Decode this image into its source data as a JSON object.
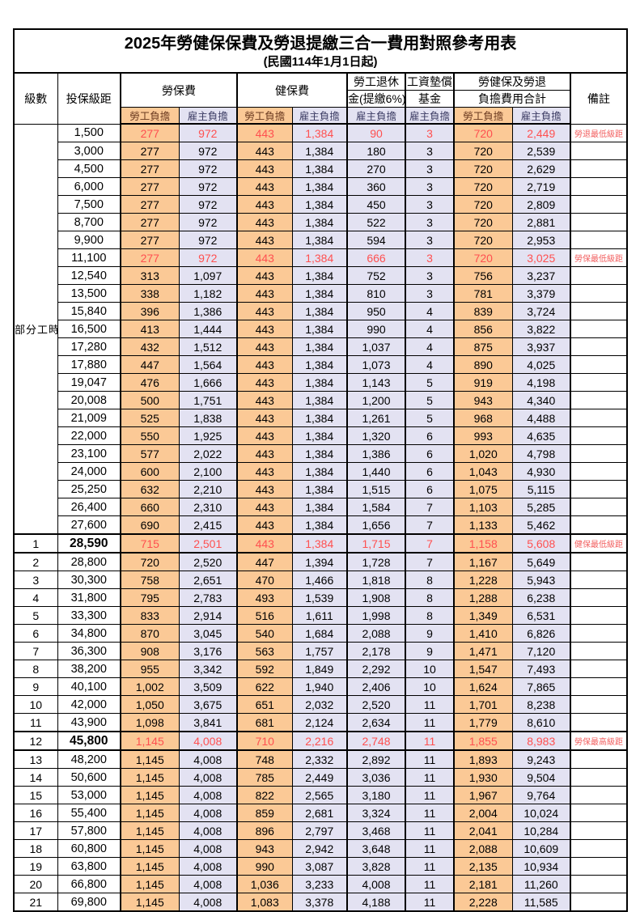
{
  "title": "2025年勞健保保費及勞退提繳三合一費用對照參考用表",
  "subtitle": "(民國114年1月1日起)",
  "header": {
    "level": "級數",
    "bracket": "投保級距",
    "labor_insurance": "勞保費",
    "health_insurance": "健保費",
    "pension_line1": "勞工退休",
    "pension_line2": "金(提繳6%)",
    "fund_line1": "工資墊償",
    "fund_line2": "基金",
    "total_line1": "勞健保及勞退",
    "total_line2": "負擔費用合計",
    "remark": "備註",
    "employee_share": "勞工負擔",
    "employer_share": "雇主負擔"
  },
  "part_time_label": "部分工時",
  "part_time_rowspan": 23,
  "colors": {
    "employee_bg": "#fbc996",
    "employer_bg": "#e3e2f2",
    "highlight_text": "#ff5050",
    "remark_text": "#f25f5f"
  },
  "rows": [
    {
      "level": "",
      "bracket": "1,500",
      "labor_emp": "277",
      "labor_er": "972",
      "health_emp": "443",
      "health_er": "1,384",
      "pension_er": "90",
      "fund_er": "3",
      "total_emp": "720",
      "total_er": "2,449",
      "remark": "勞退最低級距",
      "red": true,
      "bold": false
    },
    {
      "level": "",
      "bracket": "3,000",
      "labor_emp": "277",
      "labor_er": "972",
      "health_emp": "443",
      "health_er": "1,384",
      "pension_er": "180",
      "fund_er": "3",
      "total_emp": "720",
      "total_er": "2,539",
      "remark": "",
      "red": false,
      "bold": false
    },
    {
      "level": "",
      "bracket": "4,500",
      "labor_emp": "277",
      "labor_er": "972",
      "health_emp": "443",
      "health_er": "1,384",
      "pension_er": "270",
      "fund_er": "3",
      "total_emp": "720",
      "total_er": "2,629",
      "remark": "",
      "red": false,
      "bold": false
    },
    {
      "level": "",
      "bracket": "6,000",
      "labor_emp": "277",
      "labor_er": "972",
      "health_emp": "443",
      "health_er": "1,384",
      "pension_er": "360",
      "fund_er": "3",
      "total_emp": "720",
      "total_er": "2,719",
      "remark": "",
      "red": false,
      "bold": false
    },
    {
      "level": "",
      "bracket": "7,500",
      "labor_emp": "277",
      "labor_er": "972",
      "health_emp": "443",
      "health_er": "1,384",
      "pension_er": "450",
      "fund_er": "3",
      "total_emp": "720",
      "total_er": "2,809",
      "remark": "",
      "red": false,
      "bold": false
    },
    {
      "level": "",
      "bracket": "8,700",
      "labor_emp": "277",
      "labor_er": "972",
      "health_emp": "443",
      "health_er": "1,384",
      "pension_er": "522",
      "fund_er": "3",
      "total_emp": "720",
      "total_er": "2,881",
      "remark": "",
      "red": false,
      "bold": false
    },
    {
      "level": "",
      "bracket": "9,900",
      "labor_emp": "277",
      "labor_er": "972",
      "health_emp": "443",
      "health_er": "1,384",
      "pension_er": "594",
      "fund_er": "3",
      "total_emp": "720",
      "total_er": "2,953",
      "remark": "",
      "red": false,
      "bold": false
    },
    {
      "level": "",
      "bracket": "11,100",
      "labor_emp": "277",
      "labor_er": "972",
      "health_emp": "443",
      "health_er": "1,384",
      "pension_er": "666",
      "fund_er": "3",
      "total_emp": "720",
      "total_er": "3,025",
      "remark": "勞保最低級距",
      "red": true,
      "bold": false
    },
    {
      "level": "",
      "bracket": "12,540",
      "labor_emp": "313",
      "labor_er": "1,097",
      "health_emp": "443",
      "health_er": "1,384",
      "pension_er": "752",
      "fund_er": "3",
      "total_emp": "756",
      "total_er": "3,237",
      "remark": "",
      "red": false,
      "bold": false
    },
    {
      "level": "",
      "bracket": "13,500",
      "labor_emp": "338",
      "labor_er": "1,182",
      "health_emp": "443",
      "health_er": "1,384",
      "pension_er": "810",
      "fund_er": "3",
      "total_emp": "781",
      "total_er": "3,379",
      "remark": "",
      "red": false,
      "bold": false
    },
    {
      "level": "",
      "bracket": "15,840",
      "labor_emp": "396",
      "labor_er": "1,386",
      "health_emp": "443",
      "health_er": "1,384",
      "pension_er": "950",
      "fund_er": "4",
      "total_emp": "839",
      "total_er": "3,724",
      "remark": "",
      "red": false,
      "bold": false
    },
    {
      "level": "",
      "bracket": "16,500",
      "labor_emp": "413",
      "labor_er": "1,444",
      "health_emp": "443",
      "health_er": "1,384",
      "pension_er": "990",
      "fund_er": "4",
      "total_emp": "856",
      "total_er": "3,822",
      "remark": "",
      "red": false,
      "bold": false
    },
    {
      "level": "",
      "bracket": "17,280",
      "labor_emp": "432",
      "labor_er": "1,512",
      "health_emp": "443",
      "health_er": "1,384",
      "pension_er": "1,037",
      "fund_er": "4",
      "total_emp": "875",
      "total_er": "3,937",
      "remark": "",
      "red": false,
      "bold": false
    },
    {
      "level": "",
      "bracket": "17,880",
      "labor_emp": "447",
      "labor_er": "1,564",
      "health_emp": "443",
      "health_er": "1,384",
      "pension_er": "1,073",
      "fund_er": "4",
      "total_emp": "890",
      "total_er": "4,025",
      "remark": "",
      "red": false,
      "bold": false
    },
    {
      "level": "",
      "bracket": "19,047",
      "labor_emp": "476",
      "labor_er": "1,666",
      "health_emp": "443",
      "health_er": "1,384",
      "pension_er": "1,143",
      "fund_er": "5",
      "total_emp": "919",
      "total_er": "4,198",
      "remark": "",
      "red": false,
      "bold": false
    },
    {
      "level": "",
      "bracket": "20,008",
      "labor_emp": "500",
      "labor_er": "1,751",
      "health_emp": "443",
      "health_er": "1,384",
      "pension_er": "1,200",
      "fund_er": "5",
      "total_emp": "943",
      "total_er": "4,340",
      "remark": "",
      "red": false,
      "bold": false
    },
    {
      "level": "",
      "bracket": "21,009",
      "labor_emp": "525",
      "labor_er": "1,838",
      "health_emp": "443",
      "health_er": "1,384",
      "pension_er": "1,261",
      "fund_er": "5",
      "total_emp": "968",
      "total_er": "4,488",
      "remark": "",
      "red": false,
      "bold": false
    },
    {
      "level": "",
      "bracket": "22,000",
      "labor_emp": "550",
      "labor_er": "1,925",
      "health_emp": "443",
      "health_er": "1,384",
      "pension_er": "1,320",
      "fund_er": "6",
      "total_emp": "993",
      "total_er": "4,635",
      "remark": "",
      "red": false,
      "bold": false
    },
    {
      "level": "",
      "bracket": "23,100",
      "labor_emp": "577",
      "labor_er": "2,022",
      "health_emp": "443",
      "health_er": "1,384",
      "pension_er": "1,386",
      "fund_er": "6",
      "total_emp": "1,020",
      "total_er": "4,798",
      "remark": "",
      "red": false,
      "bold": false
    },
    {
      "level": "",
      "bracket": "24,000",
      "labor_emp": "600",
      "labor_er": "2,100",
      "health_emp": "443",
      "health_er": "1,384",
      "pension_er": "1,440",
      "fund_er": "6",
      "total_emp": "1,043",
      "total_er": "4,930",
      "remark": "",
      "red": false,
      "bold": false
    },
    {
      "level": "",
      "bracket": "25,250",
      "labor_emp": "632",
      "labor_er": "2,210",
      "health_emp": "443",
      "health_er": "1,384",
      "pension_er": "1,515",
      "fund_er": "6",
      "total_emp": "1,075",
      "total_er": "5,115",
      "remark": "",
      "red": false,
      "bold": false
    },
    {
      "level": "",
      "bracket": "26,400",
      "labor_emp": "660",
      "labor_er": "2,310",
      "health_emp": "443",
      "health_er": "1,384",
      "pension_er": "1,584",
      "fund_er": "7",
      "total_emp": "1,103",
      "total_er": "5,285",
      "remark": "",
      "red": false,
      "bold": false
    },
    {
      "level": "",
      "bracket": "27,600",
      "labor_emp": "690",
      "labor_er": "2,415",
      "health_emp": "443",
      "health_er": "1,384",
      "pension_er": "1,656",
      "fund_er": "7",
      "total_emp": "1,133",
      "total_er": "5,462",
      "remark": "",
      "red": false,
      "bold": false
    },
    {
      "level": "1",
      "bracket": "28,590",
      "labor_emp": "715",
      "labor_er": "2,501",
      "health_emp": "443",
      "health_er": "1,384",
      "pension_er": "1,715",
      "fund_er": "7",
      "total_emp": "1,158",
      "total_er": "5,608",
      "remark": "健保最低級距",
      "red": true,
      "bold": true
    },
    {
      "level": "2",
      "bracket": "28,800",
      "labor_emp": "720",
      "labor_er": "2,520",
      "health_emp": "447",
      "health_er": "1,394",
      "pension_er": "1,728",
      "fund_er": "7",
      "total_emp": "1,167",
      "total_er": "5,649",
      "remark": "",
      "red": false,
      "bold": false
    },
    {
      "level": "3",
      "bracket": "30,300",
      "labor_emp": "758",
      "labor_er": "2,651",
      "health_emp": "470",
      "health_er": "1,466",
      "pension_er": "1,818",
      "fund_er": "8",
      "total_emp": "1,228",
      "total_er": "5,943",
      "remark": "",
      "red": false,
      "bold": false
    },
    {
      "level": "4",
      "bracket": "31,800",
      "labor_emp": "795",
      "labor_er": "2,783",
      "health_emp": "493",
      "health_er": "1,539",
      "pension_er": "1,908",
      "fund_er": "8",
      "total_emp": "1,288",
      "total_er": "6,238",
      "remark": "",
      "red": false,
      "bold": false
    },
    {
      "level": "5",
      "bracket": "33,300",
      "labor_emp": "833",
      "labor_er": "2,914",
      "health_emp": "516",
      "health_er": "1,611",
      "pension_er": "1,998",
      "fund_er": "8",
      "total_emp": "1,349",
      "total_er": "6,531",
      "remark": "",
      "red": false,
      "bold": false
    },
    {
      "level": "6",
      "bracket": "34,800",
      "labor_emp": "870",
      "labor_er": "3,045",
      "health_emp": "540",
      "health_er": "1,684",
      "pension_er": "2,088",
      "fund_er": "9",
      "total_emp": "1,410",
      "total_er": "6,826",
      "remark": "",
      "red": false,
      "bold": false
    },
    {
      "level": "7",
      "bracket": "36,300",
      "labor_emp": "908",
      "labor_er": "3,176",
      "health_emp": "563",
      "health_er": "1,757",
      "pension_er": "2,178",
      "fund_er": "9",
      "total_emp": "1,471",
      "total_er": "7,120",
      "remark": "",
      "red": false,
      "bold": false
    },
    {
      "level": "8",
      "bracket": "38,200",
      "labor_emp": "955",
      "labor_er": "3,342",
      "health_emp": "592",
      "health_er": "1,849",
      "pension_er": "2,292",
      "fund_er": "10",
      "total_emp": "1,547",
      "total_er": "7,493",
      "remark": "",
      "red": false,
      "bold": false
    },
    {
      "level": "9",
      "bracket": "40,100",
      "labor_emp": "1,002",
      "labor_er": "3,509",
      "health_emp": "622",
      "health_er": "1,940",
      "pension_er": "2,406",
      "fund_er": "10",
      "total_emp": "1,624",
      "total_er": "7,865",
      "remark": "",
      "red": false,
      "bold": false
    },
    {
      "level": "10",
      "bracket": "42,000",
      "labor_emp": "1,050",
      "labor_er": "3,675",
      "health_emp": "651",
      "health_er": "2,032",
      "pension_er": "2,520",
      "fund_er": "11",
      "total_emp": "1,701",
      "total_er": "8,238",
      "remark": "",
      "red": false,
      "bold": false
    },
    {
      "level": "11",
      "bracket": "43,900",
      "labor_emp": "1,098",
      "labor_er": "3,841",
      "health_emp": "681",
      "health_er": "2,124",
      "pension_er": "2,634",
      "fund_er": "11",
      "total_emp": "1,779",
      "total_er": "8,610",
      "remark": "",
      "red": false,
      "bold": false
    },
    {
      "level": "12",
      "bracket": "45,800",
      "labor_emp": "1,145",
      "labor_er": "4,008",
      "health_emp": "710",
      "health_er": "2,216",
      "pension_er": "2,748",
      "fund_er": "11",
      "total_emp": "1,855",
      "total_er": "8,983",
      "remark": "勞保最高級距",
      "red": true,
      "bold": true
    },
    {
      "level": "13",
      "bracket": "48,200",
      "labor_emp": "1,145",
      "labor_er": "4,008",
      "health_emp": "748",
      "health_er": "2,332",
      "pension_er": "2,892",
      "fund_er": "11",
      "total_emp": "1,893",
      "total_er": "9,243",
      "remark": "",
      "red": false,
      "bold": false
    },
    {
      "level": "14",
      "bracket": "50,600",
      "labor_emp": "1,145",
      "labor_er": "4,008",
      "health_emp": "785",
      "health_er": "2,449",
      "pension_er": "3,036",
      "fund_er": "11",
      "total_emp": "1,930",
      "total_er": "9,504",
      "remark": "",
      "red": false,
      "bold": false
    },
    {
      "level": "15",
      "bracket": "53,000",
      "labor_emp": "1,145",
      "labor_er": "4,008",
      "health_emp": "822",
      "health_er": "2,565",
      "pension_er": "3,180",
      "fund_er": "11",
      "total_emp": "1,967",
      "total_er": "9,764",
      "remark": "",
      "red": false,
      "bold": false
    },
    {
      "level": "16",
      "bracket": "55,400",
      "labor_emp": "1,145",
      "labor_er": "4,008",
      "health_emp": "859",
      "health_er": "2,681",
      "pension_er": "3,324",
      "fund_er": "11",
      "total_emp": "2,004",
      "total_er": "10,024",
      "remark": "",
      "red": false,
      "bold": false
    },
    {
      "level": "17",
      "bracket": "57,800",
      "labor_emp": "1,145",
      "labor_er": "4,008",
      "health_emp": "896",
      "health_er": "2,797",
      "pension_er": "3,468",
      "fund_er": "11",
      "total_emp": "2,041",
      "total_er": "10,284",
      "remark": "",
      "red": false,
      "bold": false
    },
    {
      "level": "18",
      "bracket": "60,800",
      "labor_emp": "1,145",
      "labor_er": "4,008",
      "health_emp": "943",
      "health_er": "2,942",
      "pension_er": "3,648",
      "fund_er": "11",
      "total_emp": "2,088",
      "total_er": "10,609",
      "remark": "",
      "red": false,
      "bold": false
    },
    {
      "level": "19",
      "bracket": "63,800",
      "labor_emp": "1,145",
      "labor_er": "4,008",
      "health_emp": "990",
      "health_er": "3,087",
      "pension_er": "3,828",
      "fund_er": "11",
      "total_emp": "2,135",
      "total_er": "10,934",
      "remark": "",
      "red": false,
      "bold": false
    },
    {
      "level": "20",
      "bracket": "66,800",
      "labor_emp": "1,145",
      "labor_er": "4,008",
      "health_emp": "1,036",
      "health_er": "3,233",
      "pension_er": "4,008",
      "fund_er": "11",
      "total_emp": "2,181",
      "total_er": "11,260",
      "remark": "",
      "red": false,
      "bold": false
    },
    {
      "level": "21",
      "bracket": "69,800",
      "labor_emp": "1,145",
      "labor_er": "4,008",
      "health_emp": "1,083",
      "health_er": "3,378",
      "pension_er": "4,188",
      "fund_er": "11",
      "total_emp": "2,228",
      "total_er": "11,585",
      "remark": "",
      "red": false,
      "bold": false
    }
  ]
}
